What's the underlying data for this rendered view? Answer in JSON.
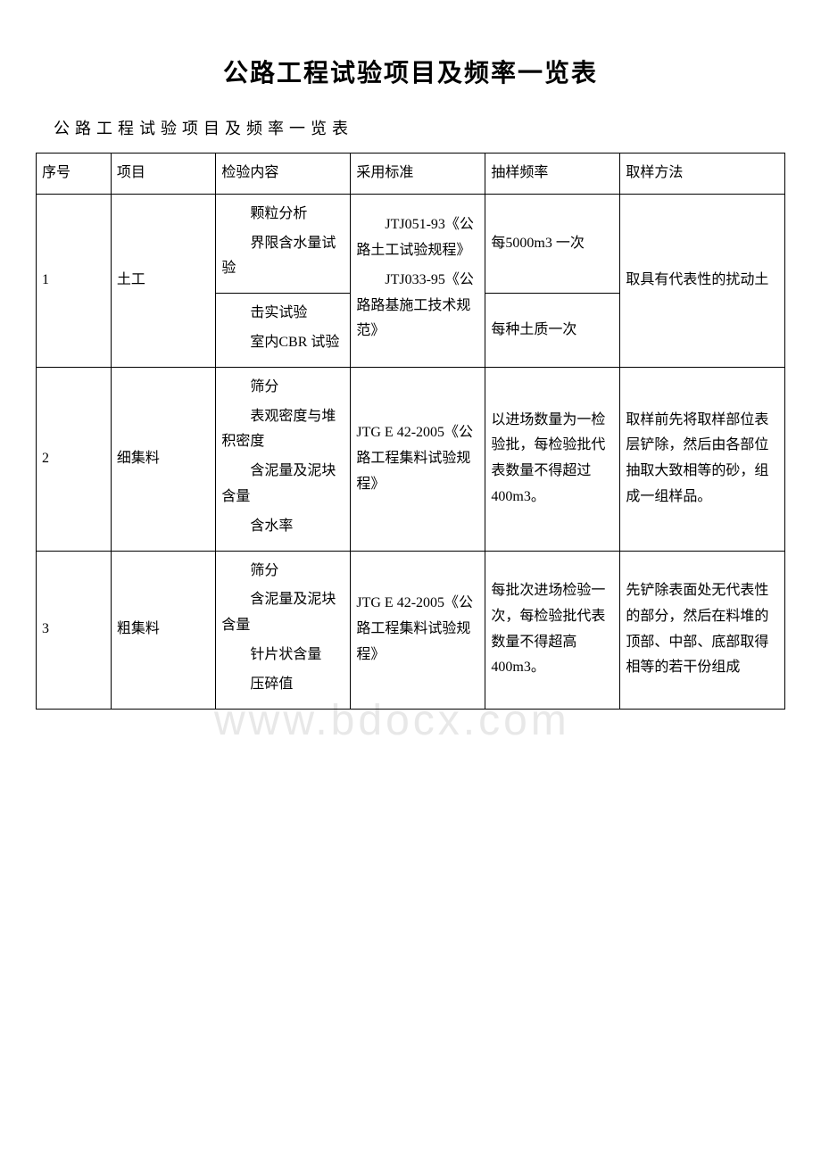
{
  "title": "公路工程试验项目及频率一览表",
  "subtitle": "公路工程试验项目及频率一览表",
  "watermark": "www.bdocx.com",
  "headers": {
    "num": "序号",
    "item": "项目",
    "content": "检验内容",
    "standard": "采用标准",
    "freq": "抽样频率",
    "method": "取样方法"
  },
  "rows": {
    "r1": {
      "num": "1",
      "item": "土工",
      "content_a": "颗粒分析",
      "content_b": "界限含水量试验",
      "content_c": "击实试验",
      "content_d": "室内CBR 试验",
      "standard_a": "JTJ051-93《公路土工试验规程》",
      "standard_b": "JTJ033-95《公路路基施工技术规范》",
      "freq_a": "每5000m3 一次",
      "freq_b": "每种土质一次",
      "method": "取具有代表性的扰动土"
    },
    "r2": {
      "num": "2",
      "item": "细集料",
      "content_a": "筛分",
      "content_b": "表观密度与堆积密度",
      "content_c": "含泥量及泥块含量",
      "content_d": "含水率",
      "standard": "JTG E 42-2005《公路工程集料试验规程》",
      "freq": "以进场数量为一检验批，每检验批代表数量不得超过 400m3。",
      "method": "取样前先将取样部位表层铲除，然后由各部位抽取大致相等的砂，组成一组样品。"
    },
    "r3": {
      "num": "3",
      "item": "粗集料",
      "content_a": "筛分",
      "content_b": "含泥量及泥块含量",
      "content_c": "针片状含量",
      "content_d": "压碎值",
      "standard": "JTG E 42-2005《公路工程集料试验规程》",
      "freq": "每批次进场检验一次，每检验批代表数量不得超高400m3。",
      "method": "先铲除表面处无代表性的部分，然后在料堆的顶部、中部、底部取得相等的若干份组成"
    }
  }
}
